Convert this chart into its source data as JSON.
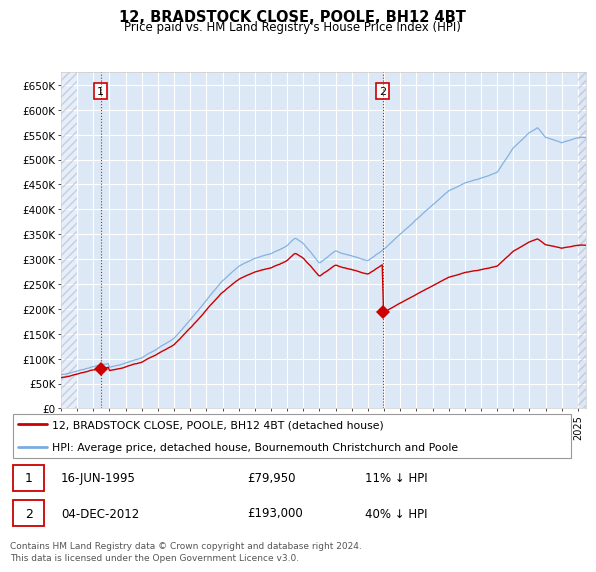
{
  "title": "12, BRADSTOCK CLOSE, POOLE, BH12 4BT",
  "subtitle": "Price paid vs. HM Land Registry's House Price Index (HPI)",
  "ylabel_ticks": [
    "£0",
    "£50K",
    "£100K",
    "£150K",
    "£200K",
    "£250K",
    "£300K",
    "£350K",
    "£400K",
    "£450K",
    "£500K",
    "£550K",
    "£600K",
    "£650K"
  ],
  "ytick_values": [
    0,
    50000,
    100000,
    150000,
    200000,
    250000,
    300000,
    350000,
    400000,
    450000,
    500000,
    550000,
    600000,
    650000
  ],
  "ylim": [
    0,
    675000
  ],
  "xlim_start": 1993.0,
  "xlim_end": 2025.5,
  "hpi_color": "#7aace0",
  "price_color": "#cc0000",
  "transaction1_date": 1995.46,
  "transaction1_price": 79950,
  "transaction2_date": 2012.92,
  "transaction2_price": 193000,
  "annotation1_label": "1",
  "annotation2_label": "2",
  "legend_line1": "12, BRADSTOCK CLOSE, POOLE, BH12 4BT (detached house)",
  "legend_line2": "HPI: Average price, detached house, Bournemouth Christchurch and Poole",
  "table_row1": [
    "1",
    "16-JUN-1995",
    "£79,950",
    "11% ↓ HPI"
  ],
  "table_row2": [
    "2",
    "04-DEC-2012",
    "£193,000",
    "40% ↓ HPI"
  ],
  "footnote": "Contains HM Land Registry data © Crown copyright and database right 2024.\nThis data is licensed under the Open Government Licence v3.0.",
  "bg_color": "#ffffff",
  "plot_bg_color": "#dce8f5"
}
